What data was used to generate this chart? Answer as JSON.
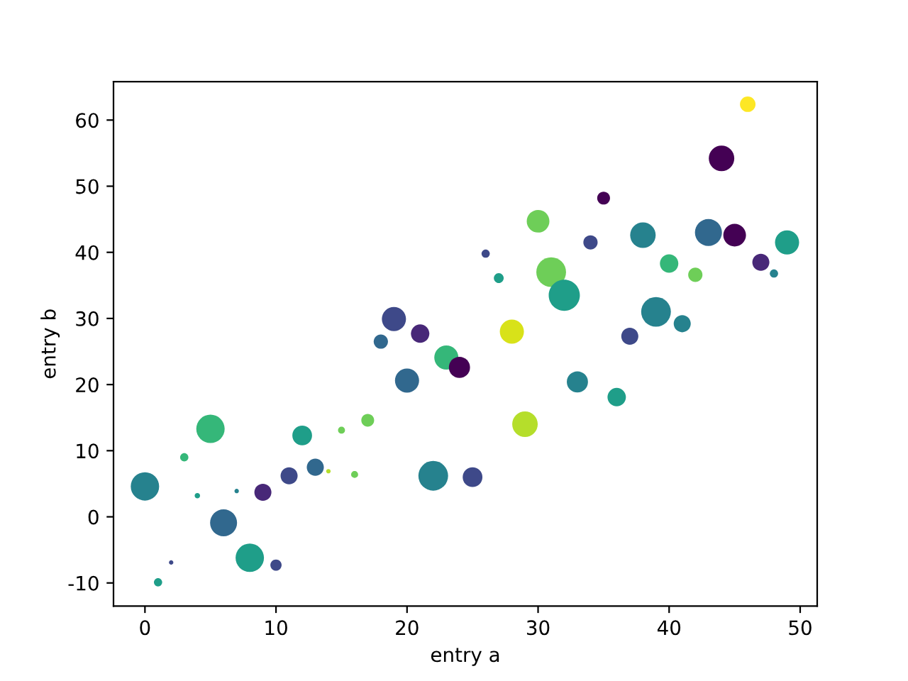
{
  "chart_data": {
    "type": "bubble",
    "xlabel": "entry a",
    "ylabel": "entry b",
    "x": [
      0,
      1,
      2,
      3,
      4,
      5,
      6,
      7,
      8,
      9,
      10,
      11,
      12,
      13,
      14,
      15,
      16,
      17,
      18,
      19,
      20,
      21,
      22,
      23,
      24,
      25,
      26,
      27,
      28,
      29,
      30,
      31,
      32,
      33,
      34,
      35,
      36,
      37,
      38,
      39,
      40,
      41,
      42,
      43,
      44,
      45,
      46,
      47,
      48,
      49
    ],
    "values": [
      4.6,
      -9.9,
      -6.9,
      9.0,
      3.2,
      13.3,
      -0.9,
      3.9,
      -6.2,
      3.7,
      -7.3,
      6.2,
      12.3,
      7.5,
      6.9,
      13.1,
      6.4,
      14.6,
      26.5,
      29.9,
      20.6,
      27.7,
      6.2,
      24.1,
      22.6,
      6.0,
      39.8,
      36.1,
      28.0,
      14.0,
      44.7,
      37.0,
      33.5,
      20.4,
      41.5,
      48.2,
      18.1,
      27.3,
      42.6,
      31.0,
      38.3,
      29.2,
      36.6,
      43.0,
      54.2,
      42.6,
      62.4,
      38.5,
      36.8,
      41.5
    ],
    "sizes": [
      0.83,
      0.07,
      0.02,
      0.07,
      0.03,
      0.83,
      0.75,
      0.02,
      0.83,
      0.3,
      0.13,
      0.3,
      0.4,
      0.3,
      0.02,
      0.05,
      0.05,
      0.17,
      0.21,
      0.6,
      0.6,
      0.35,
      0.91,
      0.6,
      0.46,
      0.4,
      0.07,
      0.1,
      0.6,
      0.67,
      0.53,
      0.91,
      1,
      0.46,
      0.21,
      0.17,
      0.35,
      0.3,
      0.67,
      0.91,
      0.35,
      0.3,
      0.21,
      0.75,
      0.67,
      0.53,
      0.25,
      0.3,
      0.07,
      0.6
    ],
    "colors": [
      "#26828e",
      "#1f9e89",
      "#3e4989",
      "#35b779",
      "#1f9e89",
      "#35b779",
      "#31688e",
      "#26828e",
      "#1f9e89",
      "#482878",
      "#3e4989",
      "#3e4989",
      "#1f9e89",
      "#31688e",
      "#b5de2b",
      "#6ece58",
      "#6ece58",
      "#6ece58",
      "#31688e",
      "#3e4989",
      "#31688e",
      "#482878",
      "#26828e",
      "#35b779",
      "#440154",
      "#3e4989",
      "#3e4989",
      "#1f9e89",
      "#d8e219",
      "#b5de2b",
      "#6ece58",
      "#6ece58",
      "#1f9e89",
      "#26828e",
      "#3e4989",
      "#440154",
      "#1f9e89",
      "#3e4989",
      "#26828e",
      "#26828e",
      "#35b779",
      "#26828e",
      "#6ece58",
      "#31688e",
      "#440154",
      "#440154",
      "#fde725",
      "#482878",
      "#26828e",
      "#1f9e89"
    ],
    "xlim": [
      -2.4,
      51.3
    ],
    "ylim": [
      -13.5,
      65.8
    ],
    "xticks": [
      0,
      10,
      20,
      30,
      40,
      50
    ],
    "yticks": [
      -10,
      0,
      10,
      20,
      30,
      40,
      50,
      60
    ],
    "grid": false
  }
}
